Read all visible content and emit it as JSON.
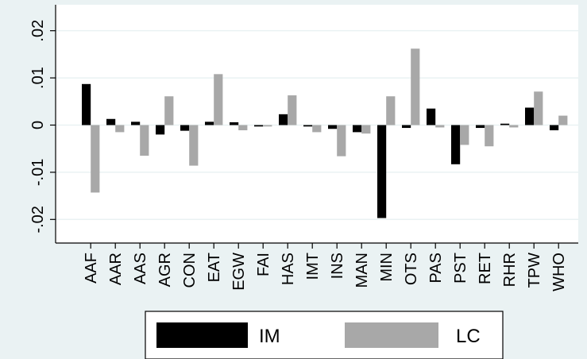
{
  "chart_data": {
    "type": "bar",
    "categories": [
      "AAF",
      "AAR",
      "AAS",
      "AGR",
      "CON",
      "EAT",
      "EGW",
      "FAI",
      "HAS",
      "IMT",
      "INS",
      "MAN",
      "MIN",
      "OTS",
      "PAS",
      "PST",
      "RET",
      "RHR",
      "TPW",
      "WHO"
    ],
    "series": [
      {
        "name": "IM",
        "color": "#000000",
        "values": [
          0.0087,
          0.0013,
          0.0007,
          -0.002,
          -0.0012,
          0.0007,
          0.0006,
          -0.0003,
          0.0023,
          -0.0003,
          -0.0008,
          -0.0015,
          -0.0197,
          -0.0006,
          0.0035,
          -0.0083,
          -0.0006,
          0.0003,
          0.0037,
          -0.0011
        ]
      },
      {
        "name": "LC",
        "color": "#a8a8a8",
        "values": [
          -0.0143,
          -0.0015,
          -0.0065,
          0.0061,
          -0.0086,
          0.0108,
          -0.0011,
          -0.0003,
          0.0063,
          -0.0015,
          -0.0066,
          -0.0018,
          0.0061,
          0.0162,
          -0.0005,
          -0.0042,
          -0.0045,
          -0.0005,
          0.0071,
          0.002
        ]
      }
    ],
    "yticks": [
      -0.02,
      -0.01,
      0,
      0.01,
      0.02
    ],
    "ytick_labels": [
      "-.02",
      "-.01",
      "0",
      ".01",
      ".02"
    ],
    "ylim": [
      -0.025,
      0.0255
    ],
    "grid": true,
    "legend_position": "bottom",
    "colors": {
      "background": "#eaf2f3",
      "plot_area": "#ffffff",
      "grid": "#eaf2f3"
    }
  }
}
